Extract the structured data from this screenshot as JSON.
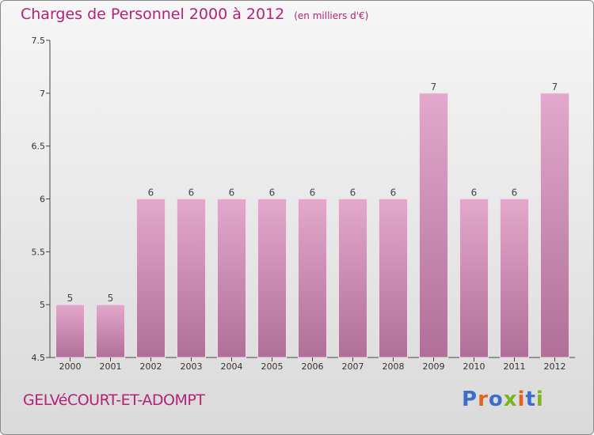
{
  "header": {
    "title": "Charges de Personnel 2000 à 2012",
    "subtitle": "(en milliers d'€)"
  },
  "footer": {
    "commune": "GELVéCOURT-ET-ADOMPT",
    "logo": "Proxiti"
  },
  "colors": {
    "title": "#b22277",
    "bar_top": "#e4a8cc",
    "bar_bottom": "#b06f98",
    "logo_letters": [
      "#3b6fc9",
      "#e0641b",
      "#3b6fc9",
      "#7ab51d",
      "#e0641b",
      "#3b6fc9",
      "#7ab51d"
    ]
  },
  "chart_data": {
    "type": "bar",
    "title": "Charges de Personnel 2000 à 2012",
    "subtitle": "(en milliers d'€)",
    "categories": [
      "2000",
      "2001",
      "2002",
      "2003",
      "2004",
      "2005",
      "2006",
      "2007",
      "2008",
      "2009",
      "2010",
      "2011",
      "2012"
    ],
    "values": [
      5,
      5,
      6,
      6,
      6,
      6,
      6,
      6,
      6,
      7,
      6,
      6,
      7
    ],
    "data_labels": [
      "5",
      "5",
      "6",
      "6",
      "6",
      "6",
      "6",
      "6",
      "6",
      "7",
      "6",
      "6",
      "7"
    ],
    "yticks": [
      "4.5",
      "5",
      "5.5",
      "6",
      "6.5",
      "7",
      "7.5"
    ],
    "ylim": [
      4.5,
      7.5
    ],
    "grid": false
  }
}
